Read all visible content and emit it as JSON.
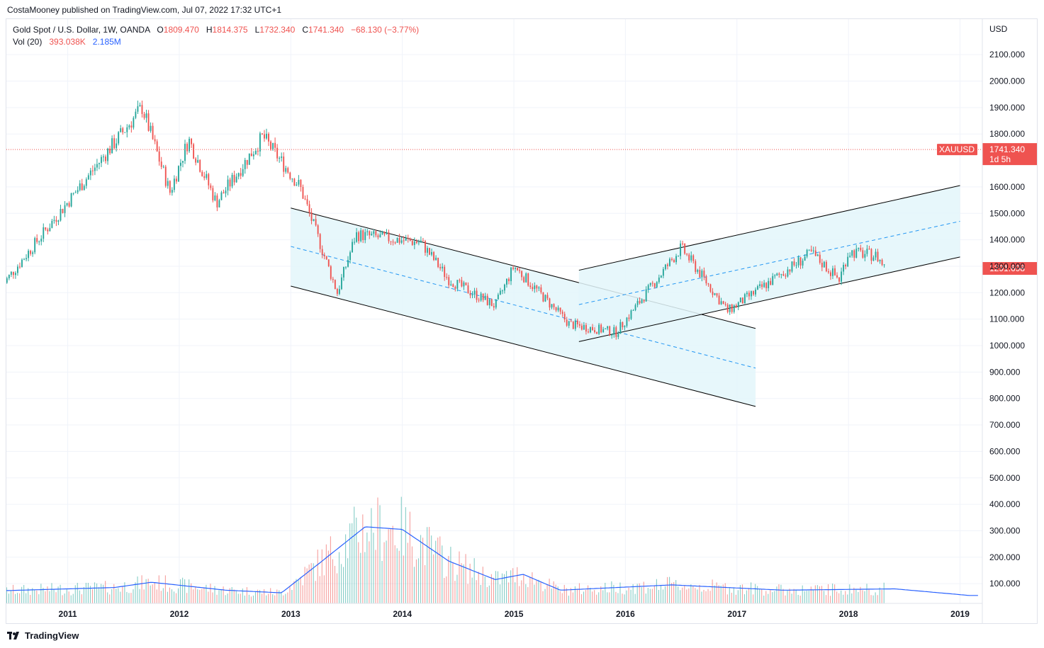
{
  "header": {
    "published": "CostaMooney published on TradingView.com, Jul 07, 2022 17:32 UTC+1"
  },
  "legend": {
    "symbol": "Gold Spot / U.S. Dollar, 1W, OANDA",
    "o_label": "O",
    "o_value": "1809.470",
    "h_label": "H",
    "h_value": "1814.375",
    "l_label": "L",
    "l_value": "1732.340",
    "c_label": "C",
    "c_value": "1741.340",
    "change": "−68.130 (−3.77%)",
    "vol_label": "Vol (20)",
    "vol_value": "393.038K",
    "vol_ma": "2.185M"
  },
  "axis": {
    "currency": "USD",
    "price_ticks": [
      "2100.000",
      "2000.000",
      "1900.000",
      "1800.000",
      "1600.000",
      "1500.000",
      "1400.000",
      "1300.000",
      "1200.000",
      "1100.000",
      "1000.000",
      "900.000",
      "800.000",
      "700.000",
      "600.000",
      "500.000",
      "400.000",
      "300.000",
      "200.000",
      "100.000"
    ],
    "year_ticks": [
      "2011",
      "2012",
      "2013",
      "2014",
      "2015",
      "2016",
      "2017",
      "2018",
      "2019"
    ]
  },
  "badges": {
    "symbol_tag": "XAUUSD",
    "last_price": "1741.340",
    "countdown": "1d 5h",
    "cursor_price": "1291.698"
  },
  "footer": {
    "brand": "TradingView"
  },
  "colors": {
    "up": "#26a69a",
    "down": "#ef5350",
    "volume_ma": "#2962ff",
    "channel_fill": "#e3f6fa",
    "channel_line": "#000000",
    "mid_line": "#2196f3"
  },
  "chart_data": {
    "type": "candlestick",
    "title": "Gold Spot / U.S. Dollar, 1W, OANDA",
    "x_range": [
      "2010-06",
      "2019-02"
    ],
    "y_range": [
      600,
      2150
    ],
    "key_prices": [
      {
        "date": "2010-06",
        "price": 1230
      },
      {
        "date": "2011-09",
        "price": 1900
      },
      {
        "date": "2011-12",
        "price": 1580
      },
      {
        "date": "2012-02",
        "price": 1780
      },
      {
        "date": "2012-05",
        "price": 1540
      },
      {
        "date": "2012-10",
        "price": 1790
      },
      {
        "date": "2013-02",
        "price": 1600
      },
      {
        "date": "2013-06",
        "price": 1200
      },
      {
        "date": "2013-08",
        "price": 1420
      },
      {
        "date": "2014-03",
        "price": 1390
      },
      {
        "date": "2014-06",
        "price": 1250
      },
      {
        "date": "2014-11",
        "price": 1150
      },
      {
        "date": "2015-01",
        "price": 1300
      },
      {
        "date": "2015-07",
        "price": 1080
      },
      {
        "date": "2015-12",
        "price": 1050
      },
      {
        "date": "2016-07",
        "price": 1370
      },
      {
        "date": "2016-12",
        "price": 1130
      },
      {
        "date": "2017-09",
        "price": 1350
      },
      {
        "date": "2017-12",
        "price": 1250
      },
      {
        "date": "2018-01",
        "price": 1355
      },
      {
        "date": "2018-04",
        "price": 1340
      },
      {
        "date": "2018-05",
        "price": 1291.698
      }
    ],
    "descending_channel": {
      "upper": [
        {
          "date": "2013-01",
          "price": 1520
        },
        {
          "date": "2017-03",
          "price": 1065
        }
      ],
      "middle": [
        {
          "date": "2013-01",
          "price": 1375
        },
        {
          "date": "2017-03",
          "price": 915
        }
      ],
      "lower": [
        {
          "date": "2013-01",
          "price": 1225
        },
        {
          "date": "2017-03",
          "price": 770
        }
      ]
    },
    "ascending_channel": {
      "upper": [
        {
          "date": "2015-08",
          "price": 1285
        },
        {
          "date": "2019-01",
          "price": 1605
        }
      ],
      "middle": [
        {
          "date": "2015-08",
          "price": 1155
        },
        {
          "date": "2019-01",
          "price": 1470
        }
      ],
      "lower": [
        {
          "date": "2015-08",
          "price": 1015
        },
        {
          "date": "2019-01",
          "price": 1335
        }
      ]
    },
    "current_price_line": 1741.34,
    "volume_ma": [
      {
        "date": "2010-06",
        "value": 48000
      },
      {
        "date": "2011-06",
        "value": 60000
      },
      {
        "date": "2011-10",
        "value": 80000
      },
      {
        "date": "2012-06",
        "value": 50000
      },
      {
        "date": "2012-12",
        "value": 40000
      },
      {
        "date": "2013-04",
        "value": 150000
      },
      {
        "date": "2013-09",
        "value": 290000
      },
      {
        "date": "2014-01",
        "value": 280000
      },
      {
        "date": "2014-06",
        "value": 160000
      },
      {
        "date": "2014-11",
        "value": 90000
      },
      {
        "date": "2015-02",
        "value": 110000
      },
      {
        "date": "2015-06",
        "value": 50000
      },
      {
        "date": "2016-06",
        "value": 70000
      },
      {
        "date": "2017-06",
        "value": 50000
      },
      {
        "date": "2018-06",
        "value": 55000
      },
      {
        "date": "2019-02",
        "value": 30000
      }
    ]
  }
}
